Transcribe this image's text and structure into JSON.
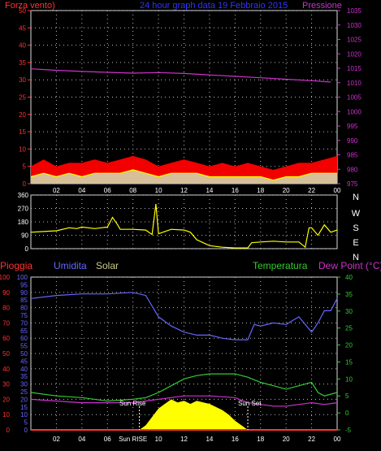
{
  "header": {
    "left": "Forza vento)",
    "center": "24 hour graph data  19 Febbraio 2015",
    "right": "Pressione"
  },
  "colors": {
    "pressure": "#cc33cc",
    "wind_gust": "#ff0000",
    "wind_avg": "#ffff00",
    "wind_low": "#ccffcc",
    "direction": "#ffff00",
    "humidity": "#6666ff",
    "temperature": "#33cc33",
    "dew": "#cc33cc",
    "rain": "#ff3333",
    "solar": "#ffff00",
    "left_axis": "#ff3333",
    "right_axis_top": "#cc33cc",
    "right_axis_bottom": "#33cc33",
    "hum_axis": "#6666ff"
  },
  "chart_data": [
    {
      "type": "line",
      "name": "wind-pressure",
      "title": "24 hour graph data  19 Febbraio 2015",
      "left_label": "Forza vento)",
      "right_label": "Pressione",
      "left_ticks": [
        "0",
        "5",
        "10",
        "15",
        "20",
        "25",
        "30",
        "35",
        "40",
        "45",
        "50"
      ],
      "right_ticks": [
        "975",
        "980",
        "985",
        "990",
        "995",
        "1000",
        "1005",
        "1010",
        "1015",
        "1020",
        "1025",
        "1030",
        "1035"
      ],
      "x_ticks": [
        "02",
        "04",
        "06",
        "08",
        "10",
        "12",
        "14",
        "16",
        "18",
        "20",
        "22",
        "00"
      ],
      "ylim_left": [
        0,
        50
      ],
      "ylim_right": [
        975,
        1035
      ],
      "xlim": [
        0,
        24
      ],
      "grid": true,
      "series": [
        {
          "id": "pressure",
          "x": [
            0,
            2,
            4,
            6,
            8,
            10,
            12,
            14,
            16,
            18,
            20,
            22,
            23.5
          ],
          "values": [
            1014.8,
            1014.3,
            1013.9,
            1013.6,
            1013.3,
            1013.5,
            1013.2,
            1012.7,
            1012.2,
            1011.7,
            1011.2,
            1010.7,
            1010.2
          ]
        },
        {
          "id": "wind-gust",
          "x": [
            0,
            1,
            2,
            3,
            4,
            5,
            6,
            7,
            8,
            9,
            10,
            11,
            12,
            13,
            14,
            15,
            16,
            17,
            18,
            19,
            20,
            21,
            22,
            23,
            24
          ],
          "values": [
            5,
            7,
            5,
            6,
            6,
            7,
            6,
            7,
            8,
            7,
            5,
            6,
            7,
            6,
            5,
            6,
            5,
            6,
            5,
            4,
            5,
            6,
            6,
            7,
            8
          ]
        },
        {
          "id": "wind-avg",
          "x": [
            0,
            1,
            2,
            3,
            4,
            5,
            6,
            7,
            8,
            9,
            10,
            11,
            12,
            13,
            14,
            15,
            16,
            17,
            18,
            19,
            20,
            21,
            22,
            23,
            24
          ],
          "values": [
            2,
            3,
            2,
            3,
            2,
            3,
            3,
            3,
            4,
            3,
            2,
            3,
            3,
            3,
            2,
            2,
            2,
            2,
            2,
            1,
            2,
            2,
            3,
            3,
            3
          ]
        }
      ]
    },
    {
      "type": "line",
      "name": "wind-direction",
      "y_ticks": [
        "0",
        "90",
        "180",
        "270",
        "360"
      ],
      "right_labels": [
        "N",
        "W",
        "S",
        "E",
        "N"
      ],
      "x_ticks": [
        "02",
        "04",
        "06",
        "08",
        "10",
        "12",
        "14",
        "16",
        "18",
        "20",
        "22",
        "00"
      ],
      "ylim": [
        0,
        360
      ],
      "xlim": [
        0,
        24
      ],
      "grid": true,
      "x": [
        0,
        1,
        2,
        3,
        3.6,
        4,
        5,
        6,
        6.4,
        6.8,
        7,
        8,
        9,
        9.5,
        9.8,
        10,
        10.5,
        11,
        12,
        12.5,
        13,
        13.5,
        14,
        15,
        16,
        17,
        17.3,
        18,
        19,
        20,
        21,
        21.5,
        21.8,
        22,
        22.5,
        23,
        23.5,
        24
      ],
      "values": [
        110,
        115,
        120,
        140,
        135,
        145,
        135,
        145,
        210,
        160,
        130,
        130,
        125,
        95,
        300,
        100,
        115,
        130,
        125,
        110,
        60,
        40,
        20,
        10,
        5,
        5,
        40,
        45,
        50,
        45,
        45,
        10,
        140,
        140,
        90,
        160,
        110,
        125
      ]
    },
    {
      "type": "line",
      "name": "rain-humidity-solar-temperature",
      "legend": [
        "Pioggia",
        "Umidita",
        "Solar",
        "Temperatura",
        "Dew Point (°C)"
      ],
      "rain_ticks": [
        "0",
        "10",
        "20",
        "30",
        "40",
        "50",
        "60",
        "70",
        "80",
        "90",
        "100"
      ],
      "hum_ticks": [
        "0",
        "5",
        "10",
        "15",
        "20",
        "25",
        "30",
        "35",
        "40",
        "45",
        "50",
        "55",
        "60",
        "65",
        "70",
        "75",
        "80",
        "85",
        "90",
        "95",
        "100"
      ],
      "temp_ticks": [
        "-5",
        "0",
        "5",
        "10",
        "15",
        "20",
        "25",
        "30",
        "35",
        "40"
      ],
      "x_ticks": [
        "02",
        "04",
        "06",
        "Sun RISE",
        "10",
        "12",
        "14",
        "16",
        "18",
        "20",
        "22",
        "00"
      ],
      "ylim_rain": [
        0,
        100
      ],
      "ylim_temp": [
        -5,
        40
      ],
      "xlim": [
        0,
        24
      ],
      "grid": true,
      "annotations": [
        "Sun Rise",
        "Sun Set"
      ],
      "series": [
        {
          "id": "humidity",
          "x": [
            0,
            2,
            4,
            6,
            8,
            9,
            10,
            11,
            12,
            13,
            14,
            15,
            16,
            17,
            17.5,
            18,
            19,
            20,
            21,
            22,
            22.5,
            23,
            23.5,
            24
          ],
          "values": [
            86,
            88,
            89,
            89,
            90,
            88,
            74,
            68,
            64,
            62,
            62,
            60,
            59,
            59,
            69,
            68,
            70,
            69,
            74,
            64,
            70,
            78,
            78,
            86
          ]
        },
        {
          "id": "temperature",
          "x": [
            0,
            2,
            4,
            6,
            8,
            9,
            10,
            11,
            12,
            13,
            14,
            15,
            16,
            17,
            18,
            19,
            20,
            21,
            22,
            22.5,
            23,
            24
          ],
          "values": [
            6,
            5,
            4.5,
            3.5,
            4,
            4.5,
            6,
            8,
            10,
            11,
            11.5,
            11.5,
            11.5,
            10.5,
            9,
            8,
            7,
            8,
            9,
            6,
            5,
            6
          ]
        },
        {
          "id": "dew-point",
          "x": [
            0,
            2,
            4,
            6,
            8,
            10,
            12,
            14,
            16,
            17,
            18,
            19,
            20,
            21,
            22,
            23,
            24
          ],
          "values": [
            4,
            3.5,
            3,
            3,
            3,
            4,
            5,
            5,
            4.5,
            3,
            2.5,
            2,
            2,
            2.5,
            3,
            2.5,
            3
          ]
        },
        {
          "id": "solar",
          "x": [
            0,
            8.5,
            9,
            10,
            10.5,
            11,
            11.5,
            12,
            12.5,
            13,
            14,
            15,
            15.5,
            16,
            16.5,
            17,
            24
          ],
          "values": [
            0,
            0,
            3,
            14,
            17,
            20,
            18,
            19,
            17,
            19,
            17,
            13,
            10,
            6,
            3,
            0,
            0
          ]
        },
        {
          "id": "rain",
          "x": [
            0,
            24
          ],
          "values": [
            0,
            0
          ]
        }
      ]
    }
  ]
}
